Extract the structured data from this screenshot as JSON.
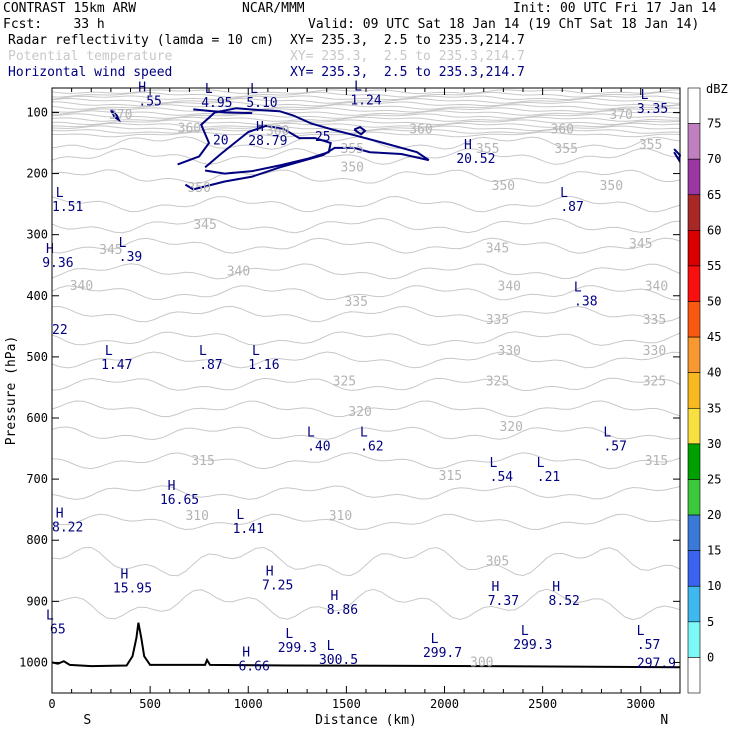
{
  "header": {
    "model": "CONTRAST 15km ARW",
    "center": "NCAR/MMM",
    "init": "Init: 00 UTC Fri 17 Jan 14",
    "fcst": "Fcst:    33 h",
    "valid": "Valid: 09 UTC Sat 18 Jan 14 (19 ChT Sat 18 Jan 14)",
    "fields": [
      {
        "name": "Radar reflectivity (lamda = 10 cm)",
        "xy": "XY= 235.3,  2.5 to 235.3,214.7",
        "color": "#000000"
      },
      {
        "name": "Potential temperature",
        "xy": "XY= 235.3,  2.5 to 235.3,214.7",
        "color": "#c8c8c8"
      },
      {
        "name": "Horizontal wind speed",
        "xy": "XY= 235.3,  2.5 to 235.3,214.7",
        "color": "#000080"
      }
    ]
  },
  "chart_data": {
    "type": "cross-section",
    "xlabel": "Distance (km)",
    "ylabel": "Pressure (hPa)",
    "xlim": [
      0,
      3200
    ],
    "ylim": [
      1050,
      60
    ],
    "x_ticks": [
      0,
      500,
      1000,
      1500,
      2000,
      2500,
      3000
    ],
    "y_ticks": [
      100,
      200,
      300,
      400,
      500,
      600,
      700,
      800,
      900,
      1000
    ],
    "end_labels": {
      "left": "S",
      "right": "N"
    },
    "colorbar": {
      "units": "dBZ",
      "levels": [
        0,
        5,
        10,
        15,
        20,
        25,
        30,
        35,
        40,
        45,
        50,
        55,
        60,
        65,
        70,
        75
      ],
      "colors": [
        "#ffffff",
        "#7ef7f7",
        "#3fb8f0",
        "#3a64f0",
        "#3a7ad6",
        "#3cc83c",
        "#00a000",
        "#f8e040",
        "#f8b820",
        "#f89830",
        "#f85810",
        "#f81010",
        "#d80000",
        "#a82828",
        "#9838a0",
        "#c080c0",
        "#ffffff"
      ]
    },
    "theta_labels": [
      {
        "x": 350,
        "p": 104,
        "v": "370"
      },
      {
        "x": 2900,
        "p": 104,
        "v": "370"
      },
      {
        "x": 700,
        "p": 126,
        "v": "360"
      },
      {
        "x": 1150,
        "p": 130,
        "v": "360"
      },
      {
        "x": 1880,
        "p": 128,
        "v": "360"
      },
      {
        "x": 2600,
        "p": 128,
        "v": "360"
      },
      {
        "x": 1530,
        "p": 160,
        "v": "355"
      },
      {
        "x": 2220,
        "p": 160,
        "v": "355"
      },
      {
        "x": 2620,
        "p": 160,
        "v": "355"
      },
      {
        "x": 3050,
        "p": 153,
        "v": "355"
      },
      {
        "x": 750,
        "p": 224,
        "v": "350"
      },
      {
        "x": 1530,
        "p": 190,
        "v": "350"
      },
      {
        "x": 2300,
        "p": 220,
        "v": "350"
      },
      {
        "x": 2850,
        "p": 220,
        "v": "350"
      },
      {
        "x": 300,
        "p": 325,
        "v": "345"
      },
      {
        "x": 780,
        "p": 284,
        "v": "345"
      },
      {
        "x": 2270,
        "p": 323,
        "v": "345"
      },
      {
        "x": 3000,
        "p": 315,
        "v": "345"
      },
      {
        "x": 150,
        "p": 384,
        "v": "340"
      },
      {
        "x": 950,
        "p": 360,
        "v": "340"
      },
      {
        "x": 2330,
        "p": 385,
        "v": "340"
      },
      {
        "x": 3080,
        "p": 385,
        "v": "340"
      },
      {
        "x": 1550,
        "p": 410,
        "v": "335"
      },
      {
        "x": 2270,
        "p": 440,
        "v": "335"
      },
      {
        "x": 3070,
        "p": 440,
        "v": "335"
      },
      {
        "x": 2330,
        "p": 490,
        "v": "330"
      },
      {
        "x": 3070,
        "p": 490,
        "v": "330"
      },
      {
        "x": 1490,
        "p": 540,
        "v": "325"
      },
      {
        "x": 2270,
        "p": 540,
        "v": "325"
      },
      {
        "x": 3070,
        "p": 540,
        "v": "325"
      },
      {
        "x": 1570,
        "p": 590,
        "v": "320"
      },
      {
        "x": 2340,
        "p": 615,
        "v": "320"
      },
      {
        "x": 770,
        "p": 670,
        "v": "315"
      },
      {
        "x": 2030,
        "p": 695,
        "v": "315"
      },
      {
        "x": 3080,
        "p": 670,
        "v": "315"
      },
      {
        "x": 740,
        "p": 760,
        "v": "310"
      },
      {
        "x": 1470,
        "p": 760,
        "v": "310"
      },
      {
        "x": 2270,
        "p": 835,
        "v": "305"
      },
      {
        "x": 2190,
        "p": 1000,
        "v": "300"
      }
    ],
    "extrema": [
      {
        "x": 500,
        "p": 66,
        "t": "H",
        "v": ".55"
      },
      {
        "x": 840,
        "p": 68,
        "t": "L",
        "v": "4.95"
      },
      {
        "x": 1070,
        "p": 68,
        "t": "L",
        "v": "5.10"
      },
      {
        "x": 1600,
        "p": 64,
        "t": "L",
        "v": "1.24"
      },
      {
        "x": 3060,
        "p": 78,
        "t": "L",
        "v": "3.35"
      },
      {
        "x": 1100,
        "p": 130,
        "t": "H",
        "v": "28.79"
      },
      {
        "x": 2160,
        "p": 160,
        "t": "H",
        "v": "20.52"
      },
      {
        "x": 80,
        "p": 238,
        "t": "L",
        "v": "1.51"
      },
      {
        "x": 2650,
        "p": 238,
        "t": "L",
        "v": ".87"
      },
      {
        "x": 30,
        "p": 330,
        "t": "H",
        "v": "9.36"
      },
      {
        "x": 400,
        "p": 320,
        "t": "L",
        "v": ".39"
      },
      {
        "x": 40,
        "p": 440,
        "t": "",
        "v": "22"
      },
      {
        "x": 2720,
        "p": 393,
        "t": "L",
        "v": ".38"
      },
      {
        "x": 330,
        "p": 497,
        "t": "L",
        "v": "1.47"
      },
      {
        "x": 810,
        "p": 497,
        "t": "L",
        "v": ".87"
      },
      {
        "x": 1080,
        "p": 497,
        "t": "L",
        "v": "1.16"
      },
      {
        "x": 1360,
        "p": 630,
        "t": "L",
        "v": ".40"
      },
      {
        "x": 1630,
        "p": 630,
        "t": "L",
        "v": ".62"
      },
      {
        "x": 2870,
        "p": 630,
        "t": "L",
        "v": ".57"
      },
      {
        "x": 2290,
        "p": 680,
        "t": "L",
        "v": ".54"
      },
      {
        "x": 2530,
        "p": 680,
        "t": "L",
        "v": ".21"
      },
      {
        "x": 650,
        "p": 718,
        "t": "H",
        "v": "16.65"
      },
      {
        "x": 80,
        "p": 763,
        "t": "H",
        "v": "8.22"
      },
      {
        "x": 1000,
        "p": 765,
        "t": "L",
        "v": "1.41"
      },
      {
        "x": 410,
        "p": 863,
        "t": "H",
        "v": "15.95"
      },
      {
        "x": 1150,
        "p": 858,
        "t": "H",
        "v": "7.25"
      },
      {
        "x": 2300,
        "p": 883,
        "t": "H",
        "v": "7.37"
      },
      {
        "x": 2610,
        "p": 883,
        "t": "H",
        "v": "8.52"
      },
      {
        "x": 1480,
        "p": 898,
        "t": "H",
        "v": "8.86"
      },
      {
        "x": 30,
        "p": 930,
        "t": "L",
        "v": "65"
      },
      {
        "x": 1250,
        "p": 960,
        "t": "L",
        "v": "299.3"
      },
      {
        "x": 2450,
        "p": 955,
        "t": "L",
        "v": "299.3"
      },
      {
        "x": 3040,
        "p": 955,
        "t": "L",
        "v": ".57"
      },
      {
        "x": 3080,
        "p": 985,
        "t": "",
        "v": "297.9"
      },
      {
        "x": 1990,
        "p": 968,
        "t": "L",
        "v": "299.7"
      },
      {
        "x": 1460,
        "p": 980,
        "t": "L",
        "v": "300.5"
      },
      {
        "x": 1030,
        "p": 990,
        "t": "H",
        "v": "6.66"
      }
    ],
    "wind_contour_labels": [
      {
        "x": 860,
        "p": 146,
        "v": "20"
      },
      {
        "x": 1380,
        "p": 140,
        "v": "25"
      }
    ]
  }
}
